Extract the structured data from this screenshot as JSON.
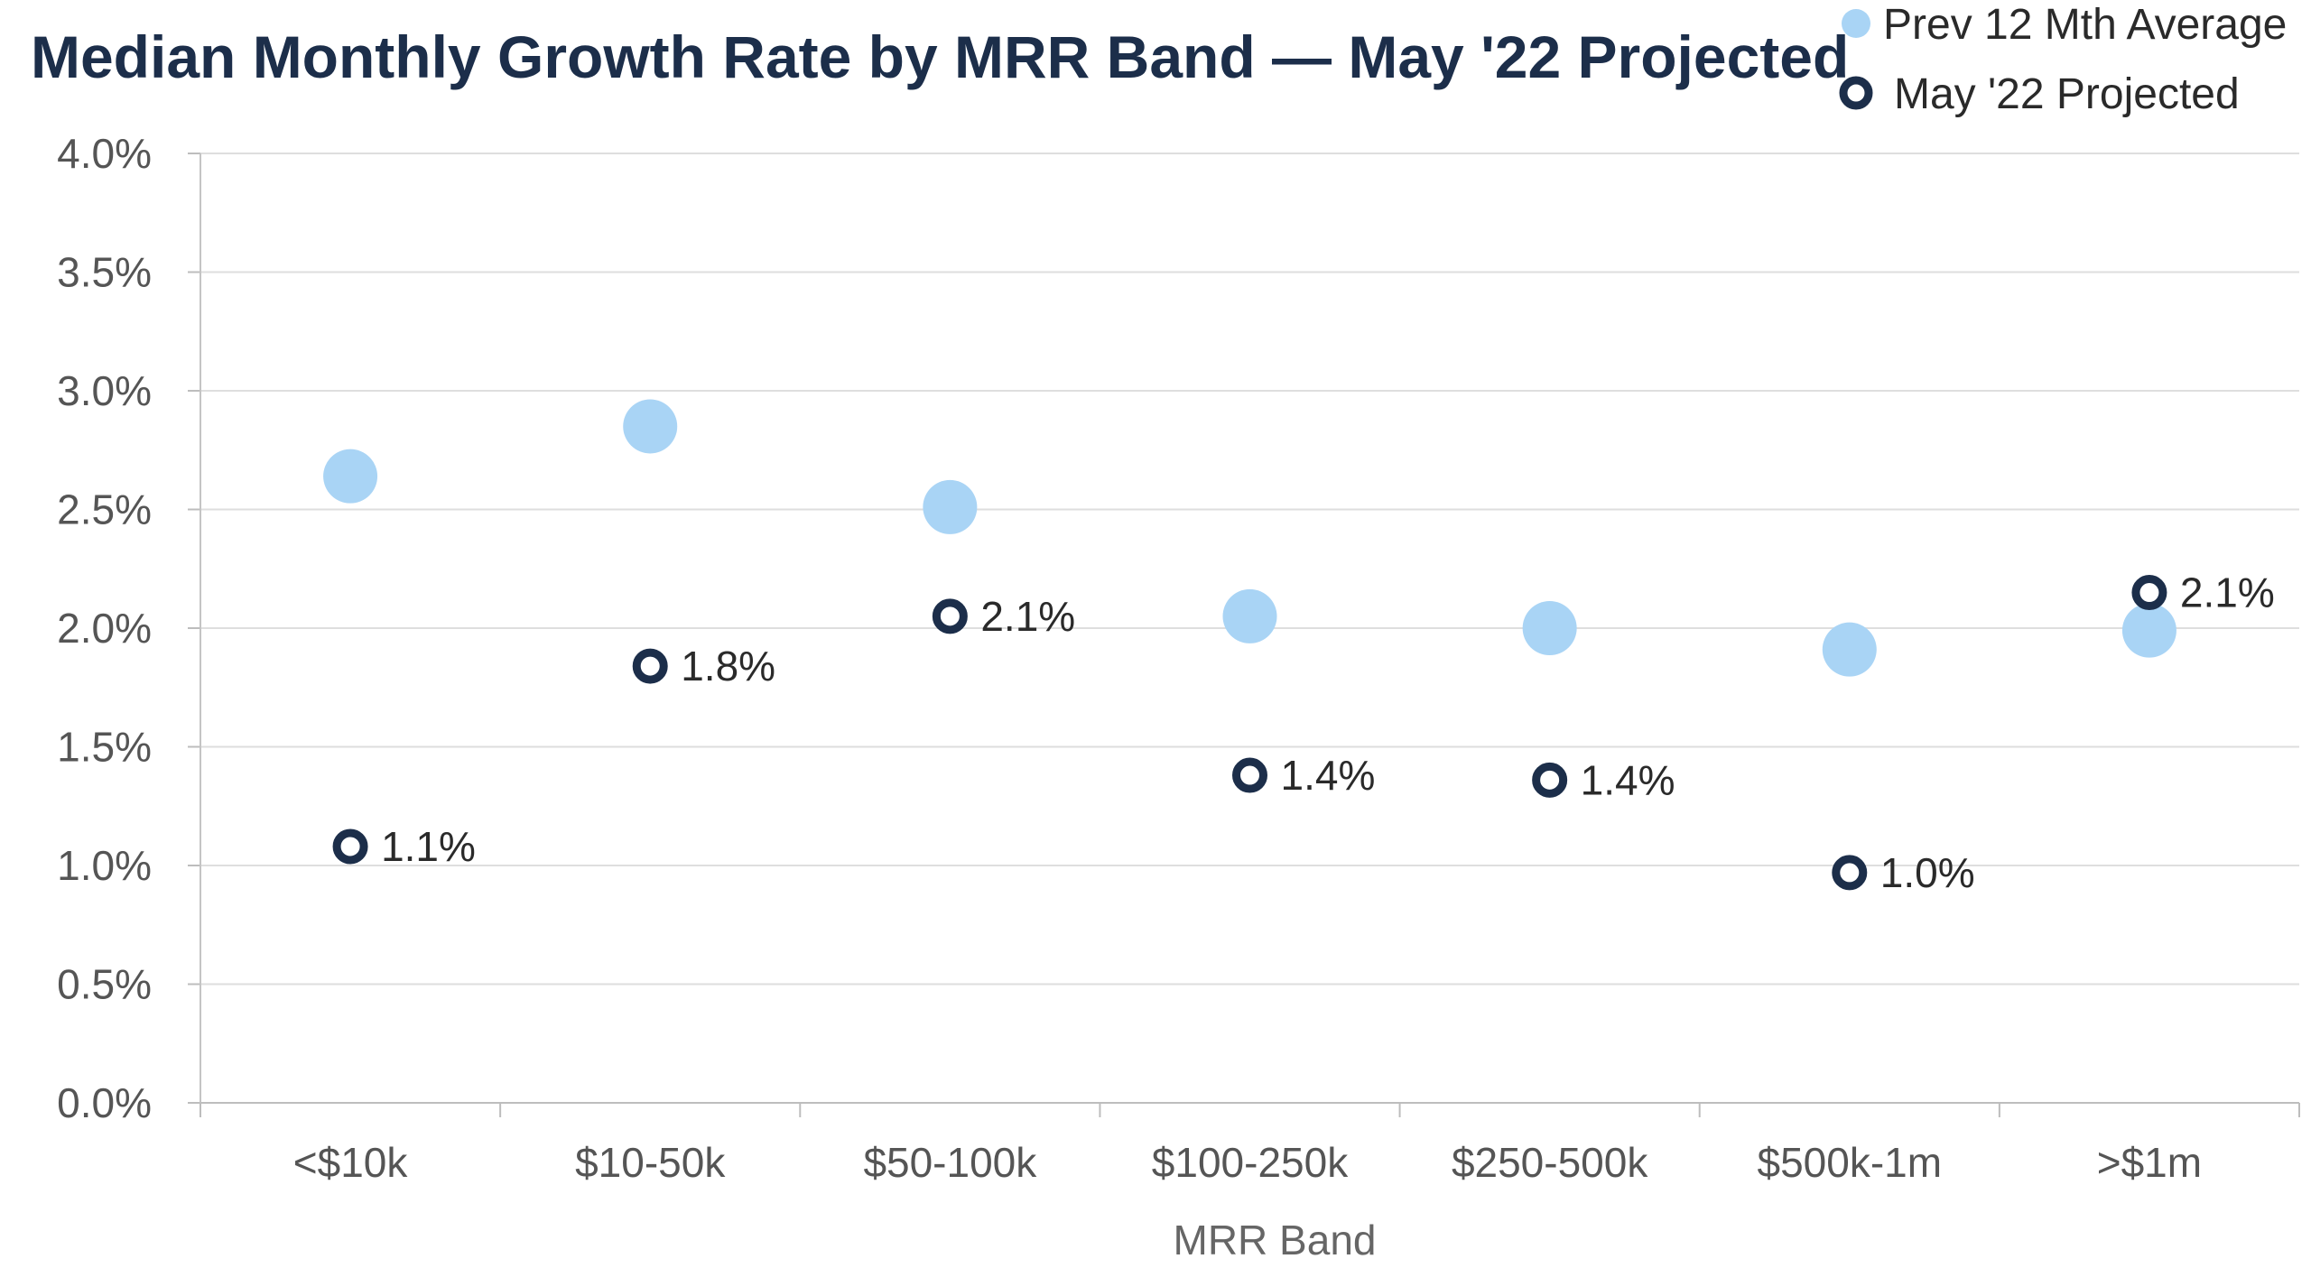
{
  "chart_data": {
    "type": "scatter",
    "title": "Median Monthly Growth Rate by MRR Band — May '22 Projected",
    "xlabel": "MRR Band",
    "ylabel": "",
    "categories": [
      "<$10k",
      "$10-50k",
      "$50-100k",
      "$100-250k",
      "$250-500k",
      "$500k-1m",
      ">$1m"
    ],
    "ylim": [
      0,
      4.0
    ],
    "y_ticks": [
      0.0,
      0.5,
      1.0,
      1.5,
      2.0,
      2.5,
      3.0,
      3.5,
      4.0
    ],
    "y_tick_labels": [
      "0.0%",
      "0.5%",
      "1.0%",
      "1.5%",
      "2.0%",
      "2.5%",
      "3.0%",
      "3.5%",
      "4.0%"
    ],
    "grid": true,
    "legend_position": "top-right",
    "series": [
      {
        "name": "Prev 12 Mth Average",
        "marker": "filled-circle",
        "color": "#a9d4f5",
        "values": [
          2.64,
          2.85,
          2.51,
          2.05,
          2.0,
          1.91,
          1.99
        ],
        "data_labels": []
      },
      {
        "name": "May '22 Projected",
        "marker": "hollow-circle",
        "color": "#1c2e4a",
        "values": [
          1.08,
          1.84,
          2.05,
          1.38,
          1.36,
          0.97,
          2.15
        ],
        "data_labels": [
          "1.1%",
          "1.8%",
          "2.1%",
          "1.4%",
          "1.4%",
          "1.0%",
          "2.1%"
        ]
      }
    ]
  }
}
